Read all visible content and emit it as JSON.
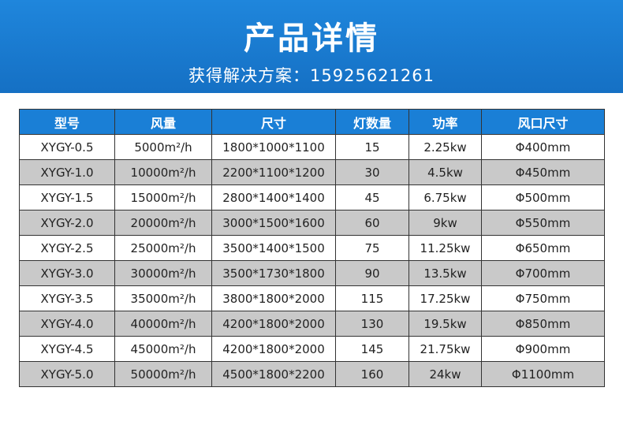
{
  "header": {
    "title": "产品详情",
    "subtitle": "获得解决方案：15925621261"
  },
  "table": {
    "columns": [
      "型号",
      "风量",
      "尺寸",
      "灯数量",
      "功率",
      "风口尺寸"
    ],
    "rows": [
      [
        "XYGY-0.5",
        "5000m²/h",
        "1800*1000*1100",
        "15",
        "2.25kw",
        "Φ400mm"
      ],
      [
        "XYGY-1.0",
        "10000m²/h",
        "2200*1100*1200",
        "30",
        "4.5kw",
        "Φ450mm"
      ],
      [
        "XYGY-1.5",
        "15000m²/h",
        "2800*1400*1400",
        "45",
        "6.75kw",
        "Φ500mm"
      ],
      [
        "XYGY-2.0",
        "20000m²/h",
        "3000*1500*1600",
        "60",
        "9kw",
        "Φ550mm"
      ],
      [
        "XYGY-2.5",
        "25000m²/h",
        "3500*1400*1500",
        "75",
        "11.25kw",
        "Φ650mm"
      ],
      [
        "XYGY-3.0",
        "30000m²/h",
        "3500*1730*1800",
        "90",
        "13.5kw",
        "Φ700mm"
      ],
      [
        "XYGY-3.5",
        "35000m²/h",
        "3800*1800*2000",
        "115",
        "17.25kw",
        "Φ750mm"
      ],
      [
        "XYGY-4.0",
        "40000m²/h",
        "4200*1800*2000",
        "130",
        "19.5kw",
        "Φ850mm"
      ],
      [
        "XYGY-4.5",
        "45000m²/h",
        "4200*1800*2000",
        "145",
        "21.75kw",
        "Φ900mm"
      ],
      [
        "XYGY-5.0",
        "50000m²/h",
        "4500*1800*2200",
        "160",
        "24kw",
        "Φ1100mm"
      ]
    ]
  }
}
